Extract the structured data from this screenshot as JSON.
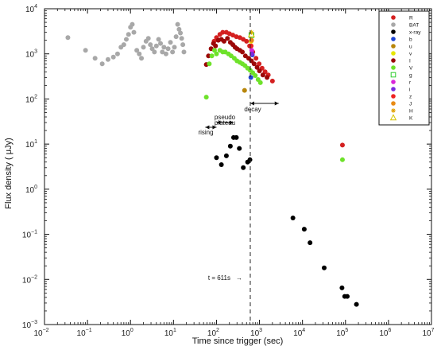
{
  "chart_data": {
    "type": "scatter",
    "x_scale": "log",
    "y_scale": "log",
    "xlabel": "Time since trigger (sec)",
    "ylabel": "Flux density ( μJy)",
    "xlim": [
      0.01,
      10000000
    ],
    "ylim": [
      0.001,
      10000
    ],
    "x_ticks": [
      {
        "base": "10",
        "exp": "−2",
        "value": 0.01
      },
      {
        "base": "10",
        "exp": "−1",
        "value": 0.1
      },
      {
        "base": "10",
        "exp": "0",
        "value": 1
      },
      {
        "base": "10",
        "exp": "1",
        "value": 10
      },
      {
        "base": "10",
        "exp": "2",
        "value": 100
      },
      {
        "base": "10",
        "exp": "3",
        "value": 1000
      },
      {
        "base": "10",
        "exp": "4",
        "value": 10000
      },
      {
        "base": "10",
        "exp": "5",
        "value": 100000
      },
      {
        "base": "10",
        "exp": "6",
        "value": 1000000
      },
      {
        "base": "10",
        "exp": "7",
        "value": 10000000
      }
    ],
    "y_ticks": [
      {
        "base": "10",
        "exp": "−3",
        "value": 0.001
      },
      {
        "base": "10",
        "exp": "−2",
        "value": 0.01
      },
      {
        "base": "10",
        "exp": "−1",
        "value": 0.1
      },
      {
        "base": "10",
        "exp": "0",
        "value": 1
      },
      {
        "base": "10",
        "exp": "1",
        "value": 10
      },
      {
        "base": "10",
        "exp": "2",
        "value": 100
      },
      {
        "base": "10",
        "exp": "3",
        "value": 1000
      },
      {
        "base": "10",
        "exp": "4",
        "value": 10000
      }
    ],
    "grid": false,
    "legend_position": "top-right",
    "series": [
      {
        "name": "R",
        "color": "#d42020",
        "marker": "circle",
        "points": [
          [
            88,
            1900
          ],
          [
            100,
            2300
          ],
          [
            120,
            2700
          ],
          [
            140,
            3000
          ],
          [
            170,
            3000
          ],
          [
            200,
            2800
          ],
          [
            240,
            2600
          ],
          [
            290,
            2400
          ],
          [
            350,
            2300
          ],
          [
            420,
            2100
          ],
          [
            500,
            1900
          ],
          [
            590,
            1500
          ],
          [
            700,
            1100
          ],
          [
            830,
            800
          ],
          [
            980,
            600
          ],
          [
            1150,
            480
          ],
          [
            1350,
            400
          ],
          [
            1600,
            340
          ],
          [
            2000,
            250
          ],
          [
            85000,
            9.5
          ]
        ]
      },
      {
        "name": "BAT",
        "color": "#a8a8a8",
        "marker": "circle",
        "points": [
          [
            0.035,
            2300
          ],
          [
            0.09,
            1200
          ],
          [
            0.15,
            800
          ],
          [
            0.22,
            600
          ],
          [
            0.3,
            750
          ],
          [
            0.4,
            850
          ],
          [
            0.5,
            1000
          ],
          [
            0.6,
            1400
          ],
          [
            0.7,
            1600
          ],
          [
            0.8,
            2100
          ],
          [
            0.9,
            2700
          ],
          [
            1.0,
            3900
          ],
          [
            1.1,
            4500
          ],
          [
            1.2,
            3000
          ],
          [
            1.4,
            1200
          ],
          [
            1.6,
            1000
          ],
          [
            1.8,
            800
          ],
          [
            2.0,
            1400
          ],
          [
            2.3,
            1900
          ],
          [
            2.6,
            2200
          ],
          [
            2.9,
            1600
          ],
          [
            3.2,
            1300
          ],
          [
            3.6,
            1100
          ],
          [
            4.0,
            1500
          ],
          [
            4.5,
            2100
          ],
          [
            5.0,
            1700
          ],
          [
            5.5,
            1100
          ],
          [
            6.0,
            1400
          ],
          [
            6.7,
            1000
          ],
          [
            7.5,
            1300
          ],
          [
            8.5,
            1800
          ],
          [
            9.5,
            1100
          ],
          [
            10.5,
            1400
          ],
          [
            11.5,
            2400
          ],
          [
            12.5,
            4500
          ],
          [
            13.5,
            3500
          ],
          [
            14.5,
            2900
          ],
          [
            15.5,
            2200
          ],
          [
            16.5,
            1600
          ],
          [
            17.5,
            1100
          ]
        ]
      },
      {
        "name": "x-ray",
        "color": "#000000",
        "marker": "circle",
        "points": [
          [
            100,
            5.0
          ],
          [
            130,
            3.5
          ],
          [
            170,
            5.5
          ],
          [
            210,
            9.0
          ],
          [
            250,
            14.0
          ],
          [
            290,
            14.0
          ],
          [
            340,
            8.0
          ],
          [
            420,
            3.0
          ],
          [
            530,
            4.0
          ],
          [
            600,
            4.5
          ],
          [
            6000,
            0.23
          ],
          [
            11000,
            0.13
          ],
          [
            15000,
            0.065
          ],
          [
            32000,
            0.018
          ],
          [
            83000,
            0.0065
          ],
          [
            96000,
            0.0042
          ],
          [
            110000,
            0.0042
          ],
          [
            180000,
            0.0028
          ]
        ]
      },
      {
        "name": "b",
        "color": "#1f46d6",
        "marker": "circle",
        "points": [
          [
            630,
            300
          ],
          [
            680,
            950
          ]
        ]
      },
      {
        "name": "u",
        "color": "#b8860b",
        "marker": "circle",
        "points": [
          [
            450,
            155
          ]
        ]
      },
      {
        "name": "v",
        "color": "#e6e600",
        "marker": "circle",
        "points": [
          [
            640,
            1900
          ]
        ]
      },
      {
        "name": "I",
        "color": "#9c0808",
        "marker": "circle",
        "points": [
          [
            58,
            580
          ],
          [
            65,
            900
          ],
          [
            75,
            1300
          ],
          [
            85,
            1700
          ],
          [
            95,
            1500
          ],
          [
            110,
            2000
          ],
          [
            130,
            2100
          ],
          [
            150,
            1900
          ],
          [
            180,
            2200
          ],
          [
            210,
            1800
          ],
          [
            240,
            1600
          ],
          [
            270,
            1400
          ],
          [
            300,
            1300
          ],
          [
            350,
            1200
          ],
          [
            400,
            1100
          ],
          [
            470,
            900
          ],
          [
            560,
            800
          ],
          [
            650,
            700
          ],
          [
            750,
            600
          ],
          [
            880,
            500
          ],
          [
            1000,
            420
          ],
          [
            1200,
            340
          ],
          [
            1500,
            300
          ]
        ]
      },
      {
        "name": "V",
        "color": "#6ee22a",
        "marker": "circle",
        "points": [
          [
            58,
            110
          ],
          [
            68,
            600
          ],
          [
            78,
            900
          ],
          [
            90,
            1200
          ],
          [
            100,
            1000
          ],
          [
            120,
            1200
          ],
          [
            140,
            1100
          ],
          [
            160,
            1100
          ],
          [
            190,
            1000
          ],
          [
            220,
            900
          ],
          [
            260,
            800
          ],
          [
            300,
            700
          ],
          [
            350,
            650
          ],
          [
            400,
            600
          ],
          [
            460,
            550
          ],
          [
            530,
            480
          ],
          [
            610,
            430
          ],
          [
            700,
            380
          ],
          [
            800,
            330
          ],
          [
            930,
            270
          ],
          [
            1050,
            230
          ],
          [
            85000,
            4.5
          ]
        ]
      },
      {
        "name": "g",
        "color": "#2ecc2e",
        "marker": "open-square",
        "points": [
          [
            650,
            2600
          ]
        ]
      },
      {
        "name": "r",
        "color": "#d926d9",
        "marker": "circle",
        "points": [
          [
            660,
            1200
          ]
        ]
      },
      {
        "name": "i",
        "color": "#7a2be0",
        "marker": "circle",
        "points": [
          [
            670,
            1000
          ]
        ]
      },
      {
        "name": "z",
        "color": "#ee2222",
        "marker": "circle",
        "points": [
          [
            640,
            1500
          ]
        ]
      },
      {
        "name": "J",
        "color": "#e88a14",
        "marker": "circle",
        "points": [
          [
            655,
            2000
          ]
        ]
      },
      {
        "name": "H",
        "color": "#e0a000",
        "marker": "star",
        "points": [
          [
            650,
            3000
          ]
        ]
      },
      {
        "name": "K",
        "color": "#d6c400",
        "marker": "open-triangle",
        "points": [
          [
            650,
            2700
          ]
        ]
      }
    ],
    "annotations": {
      "rising": "rising",
      "pseudo": "pseudo",
      "plateau": "plateau",
      "decay": "decay",
      "trigger_label": "t = 611s",
      "trigger_arrow": "→",
      "trigger_time": 611
    },
    "phase_spans": {
      "rising": [
        55,
        100
      ],
      "plateau": [
        100,
        250
      ],
      "decay": [
        611,
        2800
      ]
    }
  }
}
